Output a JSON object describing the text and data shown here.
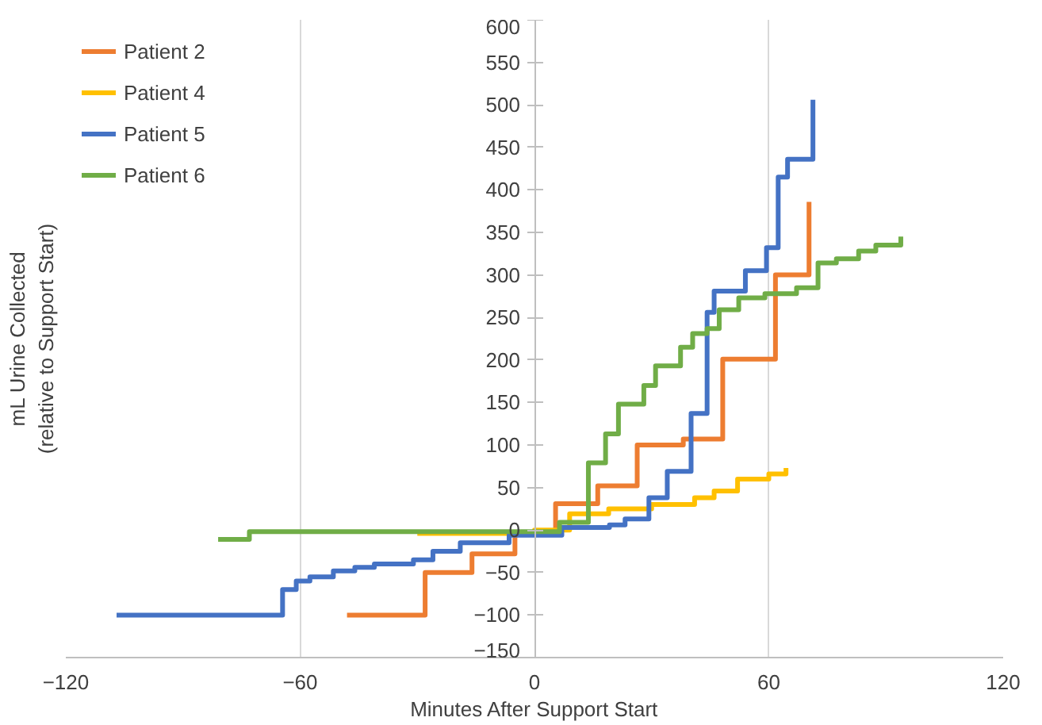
{
  "chart_data": {
    "type": "step",
    "xlabel": "Minutes After Support Start",
    "ylabel": "mL Urine Collected\n(relative to Support Start)",
    "xlim": [
      -120,
      120
    ],
    "xticks": [
      -120,
      -60,
      0,
      60,
      120
    ],
    "ylim": [
      -150,
      600
    ],
    "yticks": [
      -150,
      -100,
      -50,
      0,
      50,
      100,
      150,
      200,
      250,
      300,
      350,
      400,
      450,
      500,
      550,
      600
    ],
    "grid": "x",
    "legend": "top left",
    "line_style": "solid",
    "marker": "none",
    "series": [
      {
        "name": "Patient 2",
        "color": "#ed7d31",
        "x": [
          -48,
          -28,
          -16,
          -5,
          5.4,
          16.2,
          26.3,
          38.1,
          48.2,
          61.7,
          70.3
        ],
        "values": [
          -100,
          -50,
          -28,
          -5,
          31,
          52,
          100,
          107,
          201,
          300,
          386
        ]
      },
      {
        "name": "Patient 4",
        "color": "#ffc000",
        "x": [
          -30,
          0,
          9,
          19,
          30,
          41,
          46,
          52,
          60,
          64.4
        ],
        "values": [
          -4,
          0,
          19,
          25,
          30,
          38,
          46,
          60,
          66,
          73
        ]
      },
      {
        "name": "Patient 5",
        "color": "#4472c4",
        "x": [
          -107,
          -64.5,
          -61,
          -57.5,
          -51.5,
          -46,
          -41,
          -31,
          -26,
          -19,
          -6.5,
          7.0,
          19.2,
          23.2,
          29.3,
          34.0,
          40.1,
          44.2,
          46.0,
          54.0,
          59.4,
          62.4,
          64.8,
          71.3
        ],
        "values": [
          -100,
          -70,
          -60,
          -55,
          -48,
          -44,
          -40,
          -35,
          -25,
          -15,
          -6,
          3,
          6,
          13,
          38,
          69,
          137,
          256,
          281,
          305,
          332,
          415,
          436,
          506
        ]
      },
      {
        "name": "Patient 6",
        "color": "#70ad47",
        "x": [
          -81,
          -73,
          6.4,
          13.8,
          18.2,
          21.5,
          28,
          31,
          37.4,
          40.5,
          44.2,
          47.3,
          52.3,
          59,
          67.1,
          72.6,
          77.3,
          83,
          87.4,
          93.8
        ],
        "values": [
          -11,
          -2,
          9,
          79,
          113,
          148,
          170,
          193,
          215,
          231,
          237,
          259,
          273,
          278,
          285,
          314,
          319,
          328,
          335,
          345
        ]
      }
    ]
  }
}
